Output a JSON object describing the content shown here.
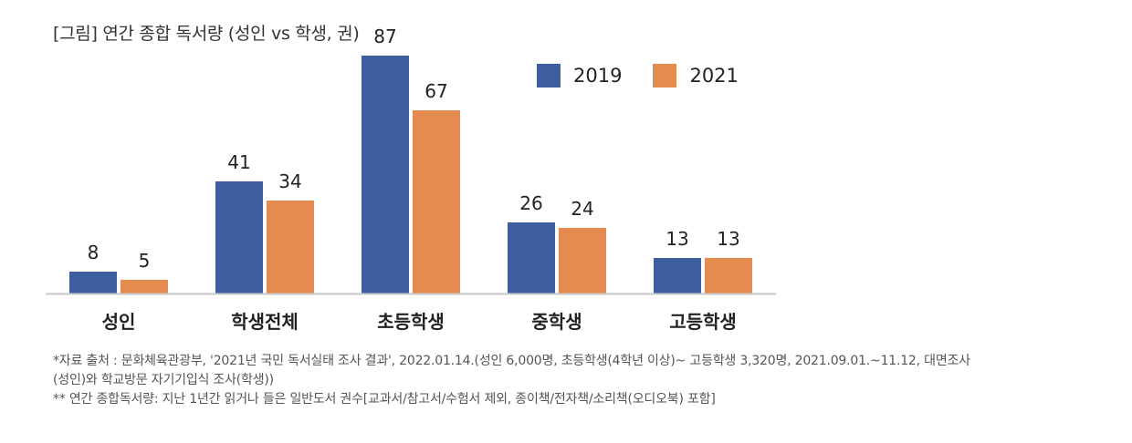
{
  "title": "[그림] 연간 종합 독서량 (성인 vs 학생, 권)",
  "chart_data": {
    "type": "bar",
    "title": "[그림] 연간 종합 독서량 (성인 vs 학생, 권)",
    "categories": [
      "성인",
      "학생전체",
      "초등학생",
      "중학생",
      "고등학생"
    ],
    "series": [
      {
        "name": "2019",
        "color": "#3f5e9f",
        "values": [
          8,
          41,
          87,
          26,
          13
        ]
      },
      {
        "name": "2021",
        "color": "#e58b4f",
        "values": [
          5,
          34,
          67,
          24,
          13
        ]
      }
    ],
    "xlabel": "",
    "ylabel": "",
    "ylim": [
      0,
      100
    ],
    "grid": false,
    "legend": "top-right",
    "axis_color": "#c8c8c8"
  },
  "notes": {
    "line1": "*자료 출처 : 문화체육관광부, '2021년 국민 독서실태 조사 결과', 2022.01.14.(성인 6,000명, 초등학생(4학년 이상)~ 고등학생 3,320명, 2021.09.01.~11.12, 대면조사",
    "line2": "(성인)와 학교방문 자기기입식 조사(학생))",
    "line3": "** 연간 종합독서량: 지난 1년간 읽거나 들은 일반도서 권수[교과서/참고서/수험서 제외, 종이책/전자책/소리책(오디오북) 포함]"
  }
}
